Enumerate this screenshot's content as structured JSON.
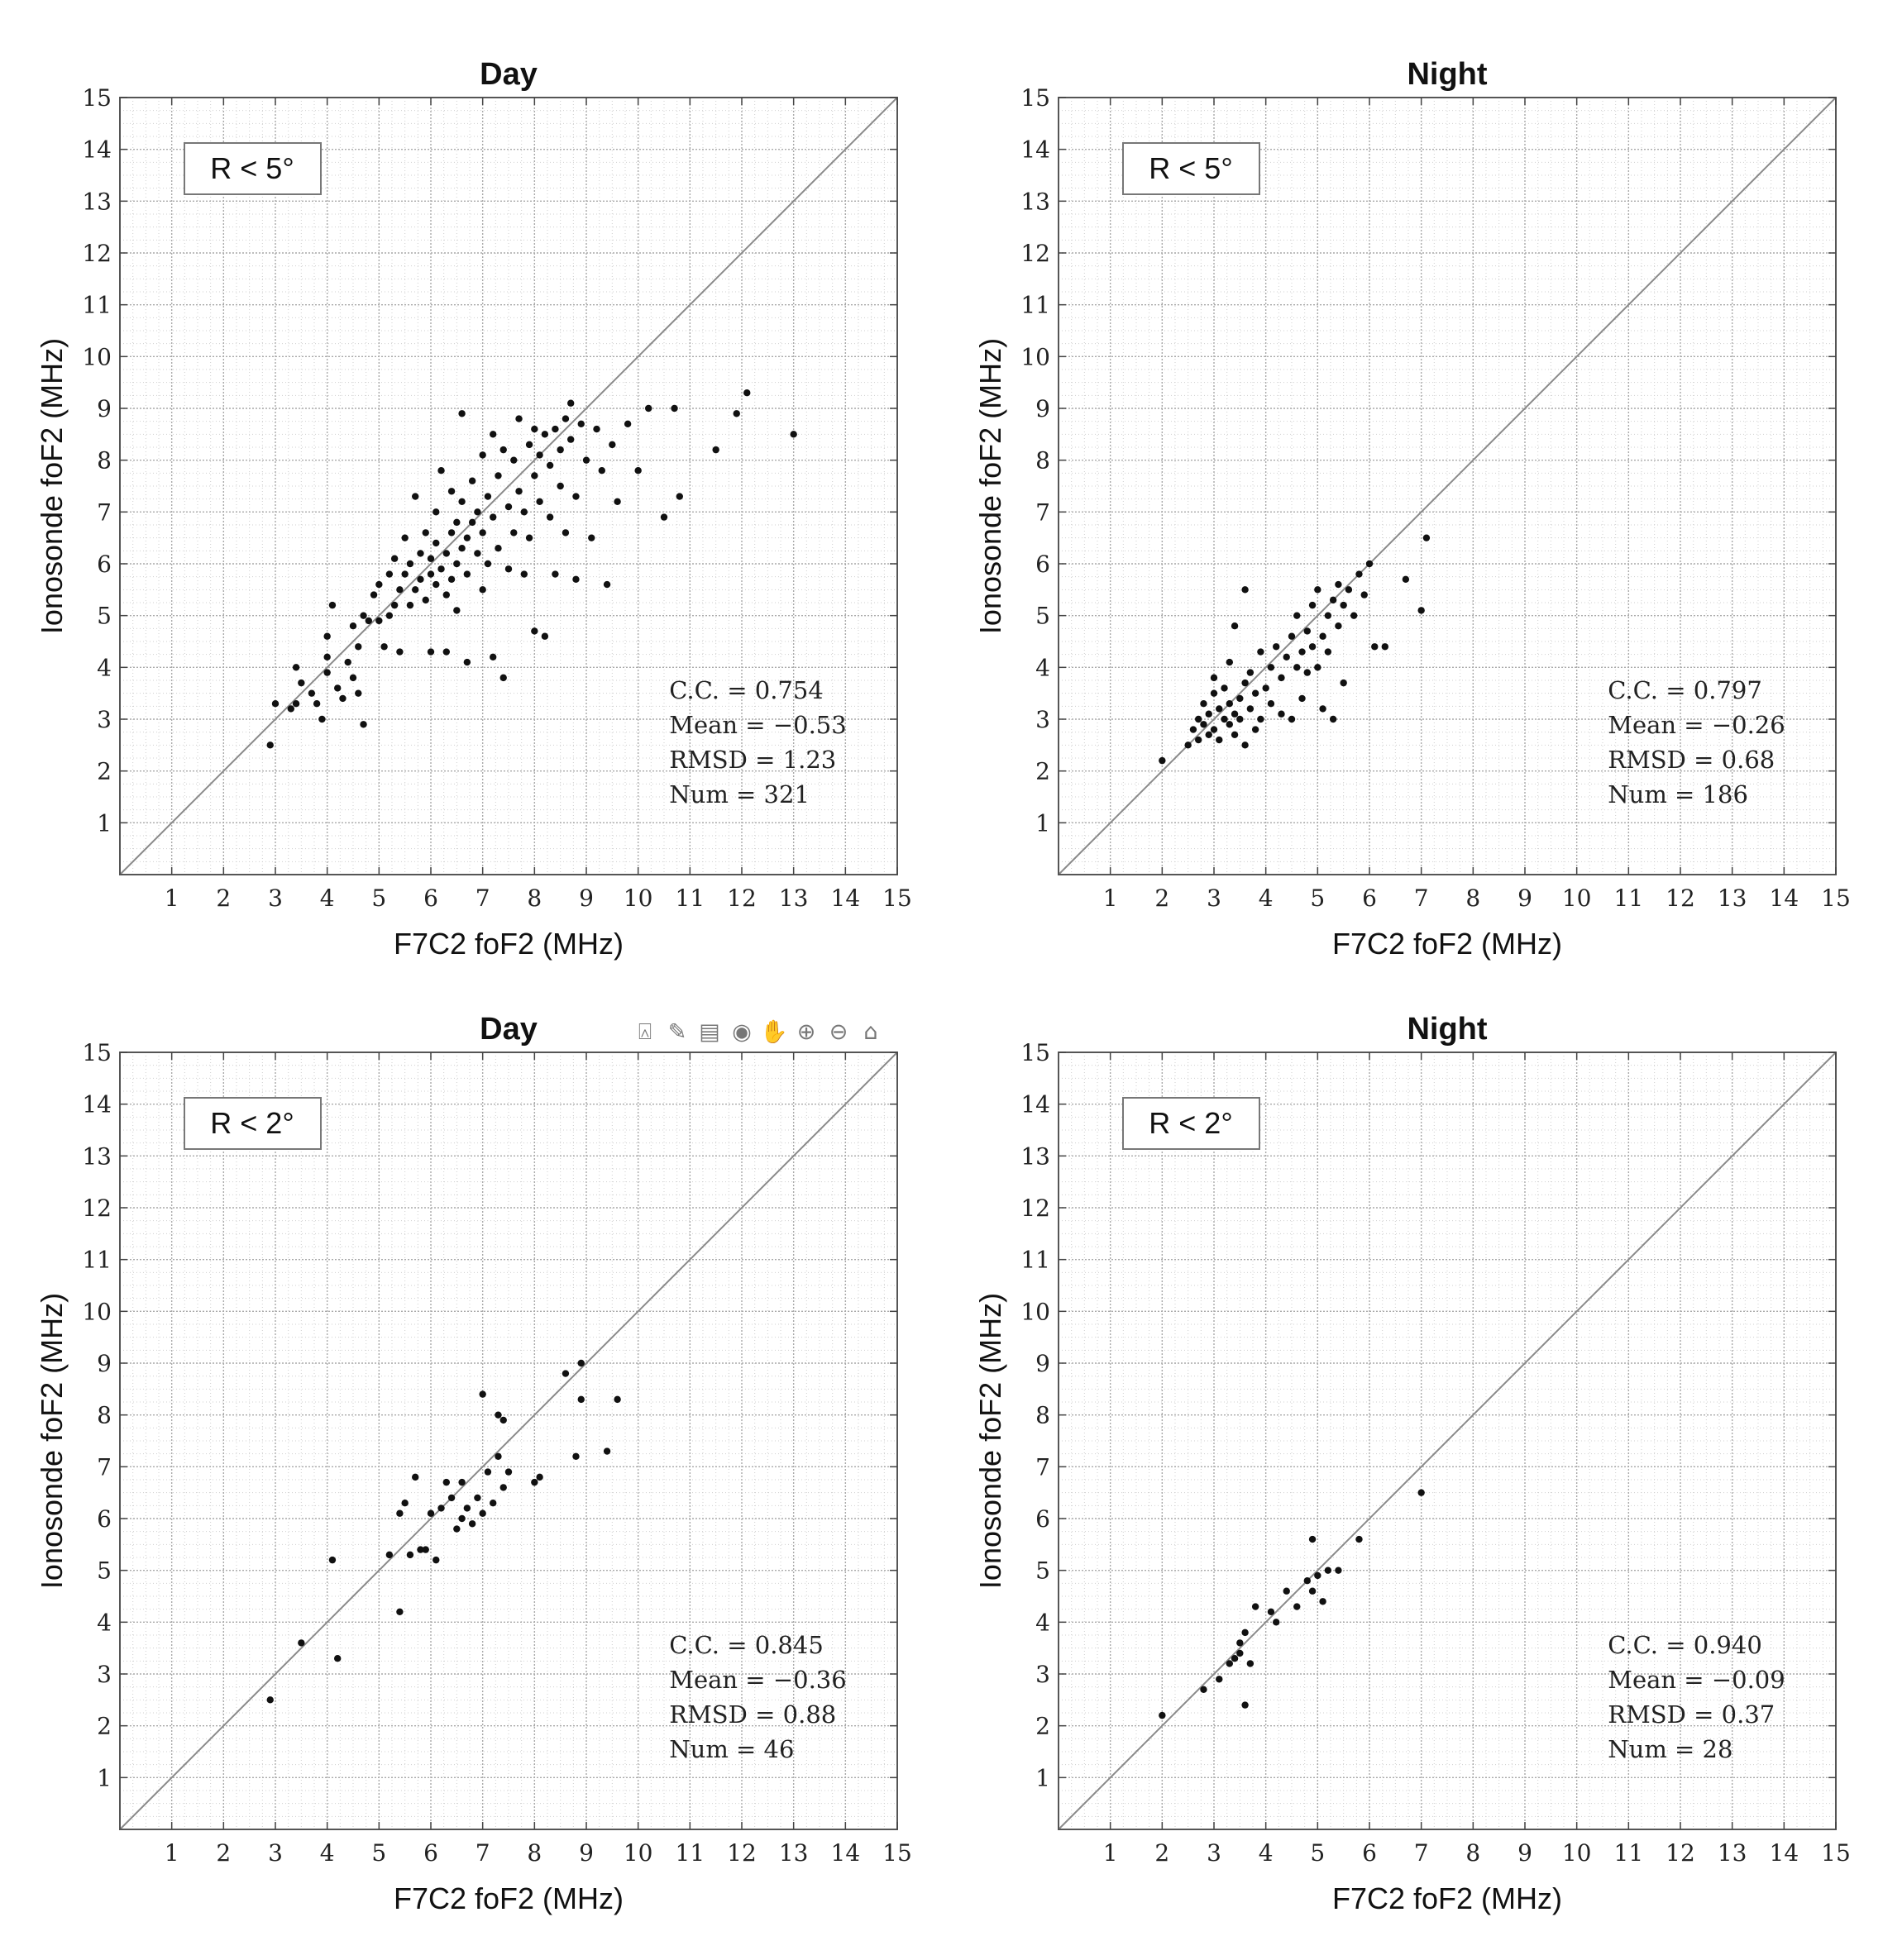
{
  "chart_data": [
    {
      "type": "scatter",
      "title": "Day",
      "xlabel": "F7C2 foF2 (MHz)",
      "ylabel": "Ionosonde foF2 (MHz)",
      "xlim": [
        0,
        15
      ],
      "ylim": [
        0,
        15
      ],
      "xticks": [
        "1",
        "2",
        "3",
        "4",
        "5",
        "6",
        "7",
        "8",
        "9",
        "10",
        "11",
        "12",
        "13",
        "14",
        "15"
      ],
      "yticks": [
        "1",
        "2",
        "3",
        "4",
        "5",
        "6",
        "7",
        "8",
        "9",
        "10",
        "11",
        "12",
        "13",
        "14",
        "15"
      ],
      "grid": true,
      "reference_line": "y = x",
      "legend": "R < 5°",
      "stats": [
        "C.C. = 0.754",
        "Mean = −0.53",
        "RMSD = 1.23",
        "Num = 321"
      ],
      "toolbar": [],
      "points": [
        [
          2.9,
          2.5
        ],
        [
          3.0,
          3.3
        ],
        [
          3.3,
          3.2
        ],
        [
          3.4,
          3.3
        ],
        [
          3.4,
          4.0
        ],
        [
          3.5,
          3.7
        ],
        [
          3.7,
          3.5
        ],
        [
          3.8,
          3.3
        ],
        [
          3.9,
          3.0
        ],
        [
          4.0,
          3.9
        ],
        [
          4.0,
          4.2
        ],
        [
          4.0,
          4.6
        ],
        [
          4.1,
          5.2
        ],
        [
          4.2,
          3.6
        ],
        [
          4.3,
          3.4
        ],
        [
          4.4,
          4.1
        ],
        [
          4.5,
          3.8
        ],
        [
          4.5,
          4.8
        ],
        [
          4.6,
          3.5
        ],
        [
          4.6,
          4.4
        ],
        [
          4.7,
          5.0
        ],
        [
          4.7,
          2.9
        ],
        [
          4.8,
          4.9
        ],
        [
          4.9,
          5.4
        ],
        [
          5.0,
          4.9
        ],
        [
          5.0,
          5.6
        ],
        [
          5.1,
          4.4
        ],
        [
          5.2,
          5.0
        ],
        [
          5.2,
          5.8
        ],
        [
          5.3,
          5.2
        ],
        [
          5.3,
          6.1
        ],
        [
          5.4,
          4.3
        ],
        [
          5.4,
          5.5
        ],
        [
          5.5,
          5.8
        ],
        [
          5.5,
          6.5
        ],
        [
          5.6,
          5.2
        ],
        [
          5.6,
          6.0
        ],
        [
          5.7,
          5.5
        ],
        [
          5.7,
          7.3
        ],
        [
          5.8,
          5.7
        ],
        [
          5.8,
          6.2
        ],
        [
          5.9,
          5.3
        ],
        [
          5.9,
          6.6
        ],
        [
          6.0,
          5.8
        ],
        [
          6.0,
          6.1
        ],
        [
          6.0,
          4.3
        ],
        [
          6.1,
          5.6
        ],
        [
          6.1,
          6.4
        ],
        [
          6.1,
          7.0
        ],
        [
          6.2,
          5.9
        ],
        [
          6.2,
          7.8
        ],
        [
          6.3,
          6.2
        ],
        [
          6.3,
          5.4
        ],
        [
          6.3,
          4.3
        ],
        [
          6.4,
          6.6
        ],
        [
          6.4,
          5.7
        ],
        [
          6.4,
          7.4
        ],
        [
          6.5,
          6.0
        ],
        [
          6.5,
          6.8
        ],
        [
          6.5,
          5.1
        ],
        [
          6.6,
          6.3
        ],
        [
          6.6,
          7.2
        ],
        [
          6.6,
          8.9
        ],
        [
          6.7,
          5.8
        ],
        [
          6.7,
          6.5
        ],
        [
          6.7,
          4.1
        ],
        [
          6.8,
          6.8
        ],
        [
          6.8,
          7.6
        ],
        [
          6.9,
          6.2
        ],
        [
          6.9,
          7.0
        ],
        [
          7.0,
          6.6
        ],
        [
          7.0,
          8.1
        ],
        [
          7.0,
          5.5
        ],
        [
          7.1,
          7.3
        ],
        [
          7.1,
          6.0
        ],
        [
          7.2,
          8.5
        ],
        [
          7.2,
          6.9
        ],
        [
          7.2,
          4.2
        ],
        [
          7.3,
          7.7
        ],
        [
          7.3,
          6.3
        ],
        [
          7.4,
          8.2
        ],
        [
          7.4,
          3.8
        ],
        [
          7.5,
          7.1
        ],
        [
          7.5,
          5.9
        ],
        [
          7.6,
          8.0
        ],
        [
          7.6,
          6.6
        ],
        [
          7.7,
          7.4
        ],
        [
          7.7,
          8.8
        ],
        [
          7.8,
          7.0
        ],
        [
          7.8,
          5.8
        ],
        [
          7.9,
          8.3
        ],
        [
          7.9,
          6.5
        ],
        [
          8.0,
          7.7
        ],
        [
          8.0,
          8.6
        ],
        [
          8.0,
          4.7
        ],
        [
          8.1,
          7.2
        ],
        [
          8.1,
          8.1
        ],
        [
          8.2,
          8.5
        ],
        [
          8.2,
          4.6
        ],
        [
          8.3,
          6.9
        ],
        [
          8.3,
          7.9
        ],
        [
          8.4,
          8.6
        ],
        [
          8.4,
          5.8
        ],
        [
          8.5,
          8.2
        ],
        [
          8.5,
          7.5
        ],
        [
          8.6,
          8.8
        ],
        [
          8.6,
          6.6
        ],
        [
          8.7,
          8.4
        ],
        [
          8.7,
          9.1
        ],
        [
          8.8,
          7.3
        ],
        [
          8.8,
          5.7
        ],
        [
          8.9,
          8.7
        ],
        [
          9.0,
          8.0
        ],
        [
          9.1,
          6.5
        ],
        [
          9.2,
          8.6
        ],
        [
          9.3,
          7.8
        ],
        [
          9.4,
          5.6
        ],
        [
          9.5,
          8.3
        ],
        [
          9.6,
          7.2
        ],
        [
          9.8,
          8.7
        ],
        [
          10.0,
          7.8
        ],
        [
          10.2,
          9.0
        ],
        [
          10.5,
          6.9
        ],
        [
          10.7,
          9.0
        ],
        [
          10.8,
          7.3
        ],
        [
          11.5,
          8.2
        ],
        [
          11.9,
          8.9
        ],
        [
          12.1,
          9.3
        ],
        [
          13.0,
          8.5
        ]
      ]
    },
    {
      "type": "scatter",
      "title": "Night",
      "xlabel": "F7C2 foF2 (MHz)",
      "ylabel": "Ionosonde foF2 (MHz)",
      "xlim": [
        0,
        15
      ],
      "ylim": [
        0,
        15
      ],
      "xticks": [
        "1",
        "2",
        "3",
        "4",
        "5",
        "6",
        "7",
        "8",
        "9",
        "10",
        "11",
        "12",
        "13",
        "14",
        "15"
      ],
      "yticks": [
        "1",
        "2",
        "3",
        "4",
        "5",
        "6",
        "7",
        "8",
        "9",
        "10",
        "11",
        "12",
        "13",
        "14",
        "15"
      ],
      "grid": true,
      "reference_line": "y = x",
      "legend": "R < 5°",
      "stats": [
        "C.C. = 0.797",
        "Mean = −0.26",
        "RMSD = 0.68",
        "Num = 186"
      ],
      "toolbar": [],
      "points": [
        [
          2.0,
          2.2
        ],
        [
          2.5,
          2.5
        ],
        [
          2.6,
          2.8
        ],
        [
          2.7,
          2.6
        ],
        [
          2.7,
          3.0
        ],
        [
          2.8,
          2.9
        ],
        [
          2.8,
          3.3
        ],
        [
          2.9,
          2.7
        ],
        [
          2.9,
          3.1
        ],
        [
          3.0,
          3.5
        ],
        [
          3.0,
          2.8
        ],
        [
          3.0,
          3.8
        ],
        [
          3.1,
          3.2
        ],
        [
          3.1,
          2.6
        ],
        [
          3.2,
          3.0
        ],
        [
          3.2,
          3.6
        ],
        [
          3.3,
          2.9
        ],
        [
          3.3,
          3.3
        ],
        [
          3.3,
          4.1
        ],
        [
          3.4,
          3.1
        ],
        [
          3.4,
          2.7
        ],
        [
          3.4,
          4.8
        ],
        [
          3.5,
          3.4
        ],
        [
          3.5,
          3.0
        ],
        [
          3.6,
          3.7
        ],
        [
          3.6,
          2.5
        ],
        [
          3.6,
          5.5
        ],
        [
          3.7,
          3.2
        ],
        [
          3.7,
          3.9
        ],
        [
          3.8,
          2.8
        ],
        [
          3.8,
          3.5
        ],
        [
          3.9,
          4.3
        ],
        [
          3.9,
          3.0
        ],
        [
          4.0,
          3.6
        ],
        [
          4.1,
          3.3
        ],
        [
          4.1,
          4.0
        ],
        [
          4.2,
          4.4
        ],
        [
          4.3,
          3.1
        ],
        [
          4.3,
          3.8
        ],
        [
          4.4,
          4.2
        ],
        [
          4.5,
          4.6
        ],
        [
          4.5,
          3.0
        ],
        [
          4.6,
          4.0
        ],
        [
          4.6,
          5.0
        ],
        [
          4.7,
          4.3
        ],
        [
          4.7,
          3.4
        ],
        [
          4.8,
          4.7
        ],
        [
          4.8,
          3.9
        ],
        [
          4.9,
          5.2
        ],
        [
          4.9,
          4.4
        ],
        [
          5.0,
          4.0
        ],
        [
          5.0,
          5.5
        ],
        [
          5.1,
          4.6
        ],
        [
          5.1,
          3.2
        ],
        [
          5.2,
          5.0
        ],
        [
          5.2,
          4.3
        ],
        [
          5.3,
          5.3
        ],
        [
          5.3,
          3.0
        ],
        [
          5.4,
          4.8
        ],
        [
          5.4,
          5.6
        ],
        [
          5.5,
          5.2
        ],
        [
          5.5,
          3.7
        ],
        [
          5.6,
          5.5
        ],
        [
          5.7,
          5.0
        ],
        [
          5.8,
          5.8
        ],
        [
          5.9,
          5.4
        ],
        [
          6.0,
          6.0
        ],
        [
          6.1,
          4.4
        ],
        [
          6.3,
          4.4
        ],
        [
          6.7,
          5.7
        ],
        [
          7.0,
          5.1
        ],
        [
          7.1,
          6.5
        ]
      ]
    },
    {
      "type": "scatter",
      "title": "Day",
      "xlabel": "F7C2 foF2 (MHz)",
      "ylabel": "Ionosonde foF2 (MHz)",
      "xlim": [
        0,
        15
      ],
      "ylim": [
        0,
        15
      ],
      "xticks": [
        "1",
        "2",
        "3",
        "4",
        "5",
        "6",
        "7",
        "8",
        "9",
        "10",
        "11",
        "12",
        "13",
        "14",
        "15"
      ],
      "yticks": [
        "1",
        "2",
        "3",
        "4",
        "5",
        "6",
        "7",
        "8",
        "9",
        "10",
        "11",
        "12",
        "13",
        "14",
        "15"
      ],
      "grid": true,
      "reference_line": "y = x",
      "legend": "R < 2°",
      "stats": [
        "C.C. = 0.845",
        "Mean = −0.36",
        "RMSD = 0.88",
        "Num = 46"
      ],
      "toolbar": [
        "export-icon",
        "brush-icon",
        "datatip-icon",
        "rotate-icon",
        "pan-icon",
        "zoom-in-icon",
        "zoom-out-icon",
        "home-icon"
      ],
      "points": [
        [
          2.9,
          2.5
        ],
        [
          3.5,
          3.6
        ],
        [
          4.1,
          5.2
        ],
        [
          4.2,
          3.3
        ],
        [
          5.2,
          5.3
        ],
        [
          5.4,
          4.2
        ],
        [
          5.4,
          6.1
        ],
        [
          5.5,
          6.3
        ],
        [
          5.6,
          5.3
        ],
        [
          5.7,
          6.8
        ],
        [
          5.8,
          5.4
        ],
        [
          5.9,
          5.4
        ],
        [
          6.0,
          6.1
        ],
        [
          6.1,
          5.2
        ],
        [
          6.2,
          6.2
        ],
        [
          6.3,
          6.7
        ],
        [
          6.4,
          6.4
        ],
        [
          6.5,
          5.8
        ],
        [
          6.6,
          6.7
        ],
        [
          6.6,
          6.0
        ],
        [
          6.7,
          6.2
        ],
        [
          6.8,
          5.9
        ],
        [
          6.9,
          6.4
        ],
        [
          7.0,
          8.4
        ],
        [
          7.0,
          6.1
        ],
        [
          7.1,
          6.9
        ],
        [
          7.2,
          6.3
        ],
        [
          7.3,
          8.0
        ],
        [
          7.3,
          7.2
        ],
        [
          7.4,
          7.9
        ],
        [
          7.4,
          6.6
        ],
        [
          7.5,
          6.9
        ],
        [
          8.0,
          6.7
        ],
        [
          8.1,
          6.8
        ],
        [
          8.6,
          8.8
        ],
        [
          8.8,
          7.2
        ],
        [
          8.9,
          9.0
        ],
        [
          8.9,
          8.3
        ],
        [
          9.4,
          7.3
        ],
        [
          9.6,
          8.3
        ]
      ]
    },
    {
      "type": "scatter",
      "title": "Night",
      "xlabel": "F7C2 foF2 (MHz)",
      "ylabel": "Ionosonde foF2 (MHz)",
      "xlim": [
        0,
        15
      ],
      "ylim": [
        0,
        15
      ],
      "xticks": [
        "1",
        "2",
        "3",
        "4",
        "5",
        "6",
        "7",
        "8",
        "9",
        "10",
        "11",
        "12",
        "13",
        "14",
        "15"
      ],
      "yticks": [
        "1",
        "2",
        "3",
        "4",
        "5",
        "6",
        "7",
        "8",
        "9",
        "10",
        "11",
        "12",
        "13",
        "14",
        "15"
      ],
      "grid": true,
      "reference_line": "y = x",
      "legend": "R < 2°",
      "stats": [
        "C.C. = 0.940",
        "Mean = −0.09",
        "RMSD = 0.37",
        "Num = 28"
      ],
      "toolbar": [],
      "points": [
        [
          2.0,
          2.2
        ],
        [
          2.8,
          2.7
        ],
        [
          3.1,
          2.9
        ],
        [
          3.3,
          3.2
        ],
        [
          3.4,
          3.3
        ],
        [
          3.5,
          3.4
        ],
        [
          3.5,
          3.6
        ],
        [
          3.6,
          3.8
        ],
        [
          3.6,
          2.4
        ],
        [
          3.7,
          3.2
        ],
        [
          3.8,
          4.3
        ],
        [
          4.1,
          4.2
        ],
        [
          4.2,
          4.0
        ],
        [
          4.4,
          4.6
        ],
        [
          4.6,
          4.3
        ],
        [
          4.8,
          4.8
        ],
        [
          4.9,
          5.6
        ],
        [
          4.9,
          4.6
        ],
        [
          5.0,
          4.9
        ],
        [
          5.1,
          4.4
        ],
        [
          5.2,
          5.0
        ],
        [
          5.4,
          5.0
        ],
        [
          5.8,
          5.6
        ],
        [
          7.0,
          6.5
        ]
      ]
    }
  ]
}
